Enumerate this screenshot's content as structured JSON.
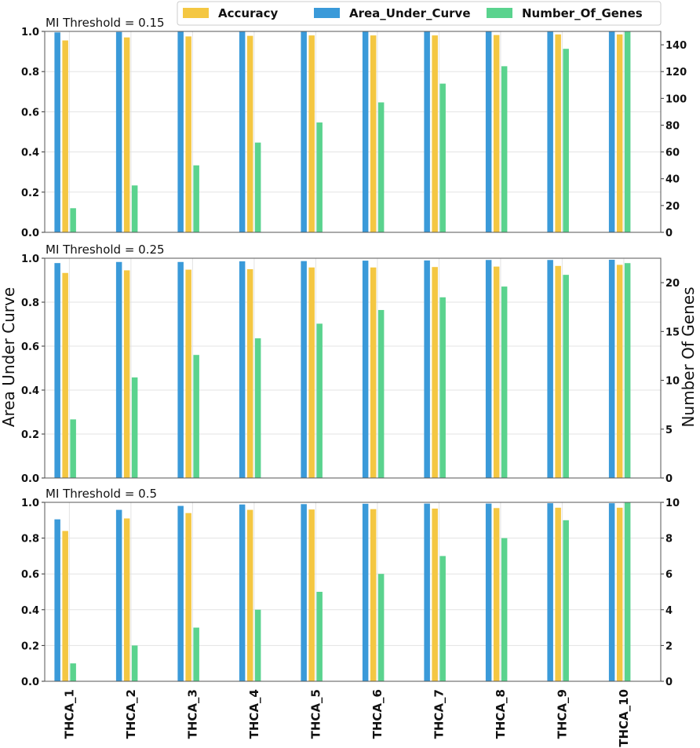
{
  "chart_data": {
    "type": "bar",
    "categories": [
      "THCA_1",
      "THCA_2",
      "THCA_3",
      "THCA_4",
      "THCA_5",
      "THCA_6",
      "THCA_7",
      "THCA_8",
      "THCA_9",
      "THCA_10"
    ],
    "legend": [
      "Accuracy",
      "Area_Under_Curve",
      "Number_Of_Genes"
    ],
    "legend_position": "top-center",
    "ylabel_left": "Area Under Curve",
    "ylabel_right": "Number Of Genes",
    "grid": true,
    "colors": {
      "Accuracy": "#F4C742",
      "Area_Under_Curve": "#3A9AD9",
      "Number_Of_Genes": "#5AD38E"
    },
    "panels": [
      {
        "title": "MI Threshold = 0.15",
        "ylim_left": [
          0,
          1.0
        ],
        "ylim_right": [
          0,
          150
        ],
        "left_ticks": [
          "0.0",
          "0.2",
          "0.4",
          "0.6",
          "0.8",
          "1.0"
        ],
        "right_ticks": [
          "0",
          "20",
          "40",
          "60",
          "80",
          "100",
          "120",
          "140"
        ],
        "series": [
          {
            "name": "Area_Under_Curve",
            "axis": "left",
            "values": [
              0.995,
              0.997,
              0.998,
              0.998,
              0.998,
              0.999,
              0.999,
              0.999,
              0.999,
              0.999
            ]
          },
          {
            "name": "Accuracy",
            "axis": "left",
            "values": [
              0.955,
              0.97,
              0.975,
              0.978,
              0.98,
              0.98,
              0.98,
              0.982,
              0.985,
              0.985
            ]
          },
          {
            "name": "Number_Of_Genes",
            "axis": "right",
            "values": [
              18,
              35,
              50,
              67,
              82,
              97,
              111,
              124,
              137,
              150
            ]
          }
        ]
      },
      {
        "title": "MI Threshold = 0.25",
        "ylim_left": [
          0,
          1.0
        ],
        "ylim_right": [
          0,
          22.5
        ],
        "left_ticks": [
          "0.0",
          "0.2",
          "0.4",
          "0.6",
          "0.8",
          "1.0"
        ],
        "right_ticks": [
          "0",
          "5",
          "10",
          "15",
          "20"
        ],
        "series": [
          {
            "name": "Area_Under_Curve",
            "axis": "left",
            "values": [
              0.978,
              0.983,
              0.983,
              0.986,
              0.987,
              0.989,
              0.99,
              0.992,
              0.992,
              0.993
            ]
          },
          {
            "name": "Accuracy",
            "axis": "left",
            "values": [
              0.933,
              0.945,
              0.948,
              0.95,
              0.958,
              0.958,
              0.96,
              0.962,
              0.965,
              0.97
            ]
          },
          {
            "name": "Number_Of_Genes",
            "axis": "right",
            "values": [
              6,
              10.3,
              12.6,
              14.3,
              15.8,
              17.2,
              18.5,
              19.6,
              20.8,
              22
            ]
          }
        ]
      },
      {
        "title": "MI Threshold = 0.5",
        "ylim_left": [
          0,
          1.0
        ],
        "ylim_right": [
          0,
          10
        ],
        "left_ticks": [
          "0.0",
          "0.2",
          "0.4",
          "0.6",
          "0.8",
          "1.0"
        ],
        "right_ticks": [
          "0",
          "2",
          "4",
          "6",
          "8",
          "10"
        ],
        "series": [
          {
            "name": "Area_Under_Curve",
            "axis": "left",
            "values": [
              0.905,
              0.958,
              0.98,
              0.988,
              0.99,
              0.992,
              0.993,
              0.993,
              0.995,
              0.995
            ]
          },
          {
            "name": "Accuracy",
            "axis": "left",
            "values": [
              0.84,
              0.91,
              0.94,
              0.958,
              0.96,
              0.962,
              0.965,
              0.968,
              0.97,
              0.97
            ]
          },
          {
            "name": "Number_Of_Genes",
            "axis": "right",
            "values": [
              1,
              2,
              3,
              4,
              5,
              6,
              7,
              8,
              9,
              10
            ]
          }
        ]
      }
    ]
  }
}
